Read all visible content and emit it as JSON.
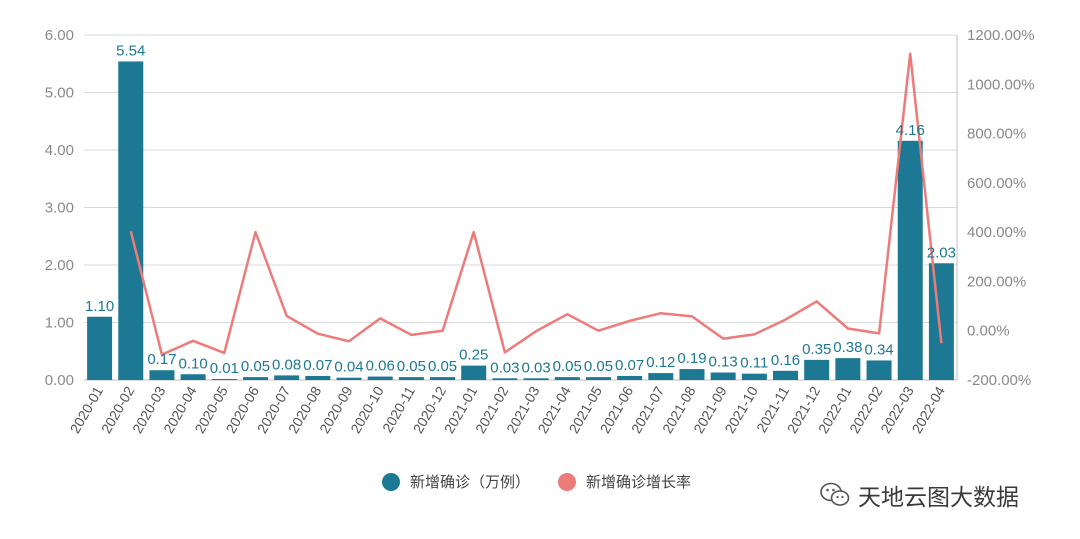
{
  "colors": {
    "bar": "#1c7893",
    "line": "#ec7b79",
    "grid": "#d9d9d9",
    "axis": "#bfbfbf"
  },
  "chart_data": {
    "type": "bar",
    "categories": [
      "2020-01",
      "2020-02",
      "2020-03",
      "2020-04",
      "2020-05",
      "2020-06",
      "2020-07",
      "2020-08",
      "2020-09",
      "2020-10",
      "2020-11",
      "2020-12",
      "2021-01",
      "2021-02",
      "2021-03",
      "2021-04",
      "2021-05",
      "2021-06",
      "2021-07",
      "2021-08",
      "2021-09",
      "2021-10",
      "2021-11",
      "2021-12",
      "2022-01",
      "2022-02",
      "2022-03",
      "2022-04"
    ],
    "series": [
      {
        "name": "新增确诊（万例）",
        "type": "bar",
        "axis": "left",
        "values": [
          1.1,
          5.54,
          0.17,
          0.1,
          0.01,
          0.05,
          0.08,
          0.07,
          0.04,
          0.06,
          0.05,
          0.05,
          0.25,
          0.03,
          0.03,
          0.05,
          0.05,
          0.07,
          0.12,
          0.19,
          0.13,
          0.11,
          0.16,
          0.35,
          0.38,
          0.34,
          4.16,
          2.03
        ],
        "labels": [
          "1.10",
          "5.54",
          "0.17",
          "0.10",
          "0.01",
          "0.05",
          "0.08",
          "0.07",
          "0.04",
          "0.06",
          "0.05",
          "0.05",
          "0.25",
          "0.03",
          "0.03",
          "0.05",
          "0.05",
          "0.07",
          "0.12",
          "0.19",
          "0.13",
          "0.11",
          "0.16",
          "0.35",
          "0.38",
          "0.34",
          "4.16",
          "2.03"
        ]
      },
      {
        "name": "新增确诊增长率",
        "type": "line",
        "axis": "right",
        "values": [
          null,
          404,
          -97,
          -41,
          -90,
          400,
          60,
          -12,
          -43,
          50,
          -17,
          0,
          400,
          -88,
          -2,
          67,
          0,
          40,
          71,
          58,
          -32,
          -15,
          45,
          119,
          9,
          -11,
          1124,
          -51
        ]
      }
    ],
    "y_left": {
      "min": 0,
      "max": 6,
      "ticks": [
        "0.00",
        "1.00",
        "2.00",
        "3.00",
        "4.00",
        "5.00",
        "6.00"
      ]
    },
    "y_right": {
      "min": -200,
      "max": 1200,
      "ticks": [
        "-200.00%",
        "0.00%",
        "200.00%",
        "400.00%",
        "600.00%",
        "800.00%",
        "1000.00%",
        "1200.00%"
      ]
    },
    "grid": true,
    "legend_position": "bottom"
  },
  "watermark": {
    "text": "天地云图大数据",
    "icon": "wechat-icon"
  }
}
